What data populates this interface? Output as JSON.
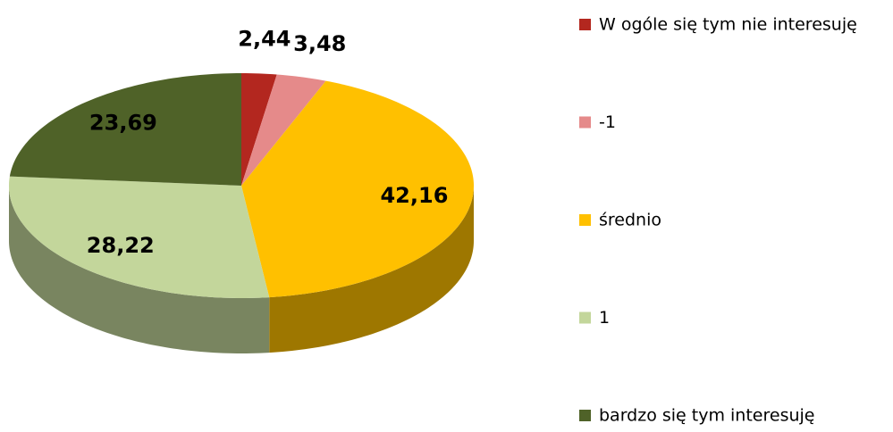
{
  "chart_data": {
    "type": "pie",
    "categories": [
      "W ogóle się tym nie interesuję",
      "-1",
      "średnio",
      "1",
      "bardzo się tym interesuję"
    ],
    "values": [
      2.44,
      3.48,
      42.16,
      28.22,
      23.69
    ],
    "value_labels": [
      "2,44",
      "3,48",
      "42,16",
      "28,22",
      "23,69"
    ],
    "colors": [
      "#b3271f",
      "#e58a8a",
      "#ffc000",
      "#c3d69b",
      "#4f6228"
    ],
    "legend": "right"
  }
}
